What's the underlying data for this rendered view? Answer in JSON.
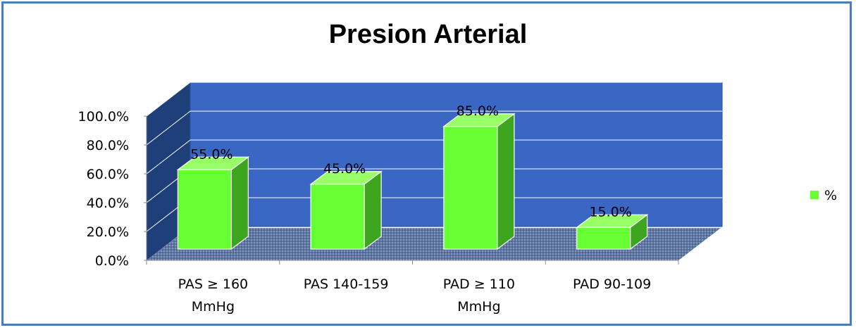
{
  "chart_data": {
    "type": "bar",
    "title": "Presion Arterial",
    "categories": [
      [
        "PAS ≥ 160",
        "MmHg"
      ],
      [
        "PAS 140-159"
      ],
      [
        "PAD ≥ 110",
        "MmHg"
      ],
      [
        "PAD 90-109"
      ]
    ],
    "series": [
      {
        "name": "%",
        "values": [
          55.0,
          45.0,
          85.0,
          15.0
        ],
        "data_labels": [
          "55.0%",
          "45.0%",
          "85.0%",
          "15.0%"
        ]
      }
    ],
    "ylim": [
      0,
      100
    ],
    "yticks": [
      0,
      20,
      40,
      60,
      80,
      100
    ],
    "ytick_labels": [
      "0.0%",
      "20.0%",
      "40.0%",
      "60.0%",
      "80.0%",
      "100.0%"
    ],
    "grid": true,
    "three_d": true,
    "legend_position": "right",
    "colors": {
      "bar_front": "#66ff33",
      "bar_top": "#99ff66",
      "bar_side": "#3da61e",
      "back_wall": "#3a66c4",
      "side_wall": "#1f3f7a",
      "floor": "#6e82a8",
      "frame": "#4a7ebb"
    }
  }
}
